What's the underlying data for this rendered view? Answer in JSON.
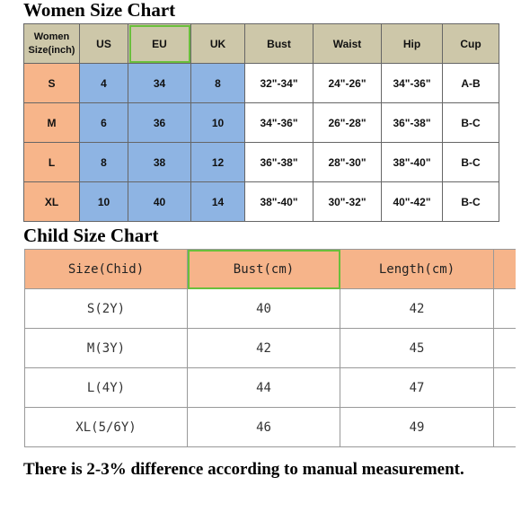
{
  "women": {
    "title": "Women Size Chart",
    "headers": [
      "Women\nSize(inch)",
      "US",
      "EU",
      "UK",
      "Bust",
      "Waist",
      "Hip",
      "Cup"
    ],
    "rows": [
      [
        "S",
        "4",
        "34",
        "8",
        "32\"-34\"",
        "24\"-26\"",
        "34\"-36\"",
        "A-B"
      ],
      [
        "M",
        "6",
        "36",
        "10",
        "34\"-36\"",
        "26\"-28\"",
        "36\"-38\"",
        "B-C"
      ],
      [
        "L",
        "8",
        "38",
        "12",
        "36\"-38\"",
        "28\"-30\"",
        "38\"-40\"",
        "B-C"
      ],
      [
        "XL",
        "10",
        "40",
        "14",
        "38\"-40\"",
        "30\"-32\"",
        "40\"-42\"",
        "B-C"
      ]
    ]
  },
  "child": {
    "title": "Child Size Chart",
    "headers": [
      "Size(Chid)",
      "Bust(cm)",
      "Length(cm)"
    ],
    "rows": [
      [
        "S(2Y)",
        "40",
        "42"
      ],
      [
        "M(3Y)",
        "42",
        "45"
      ],
      [
        "L(4Y)",
        "44",
        "47"
      ],
      [
        "XL(5/6Y)",
        "46",
        "49"
      ]
    ]
  },
  "note": "There is 2-3% difference according to manual measurement.",
  "colors": {
    "header_tan": "#cdc7a9",
    "size_orange": "#f7b58a",
    "us_eu_uk_blue": "#8eb4e3",
    "highlight_green": "#6abf3c"
  }
}
